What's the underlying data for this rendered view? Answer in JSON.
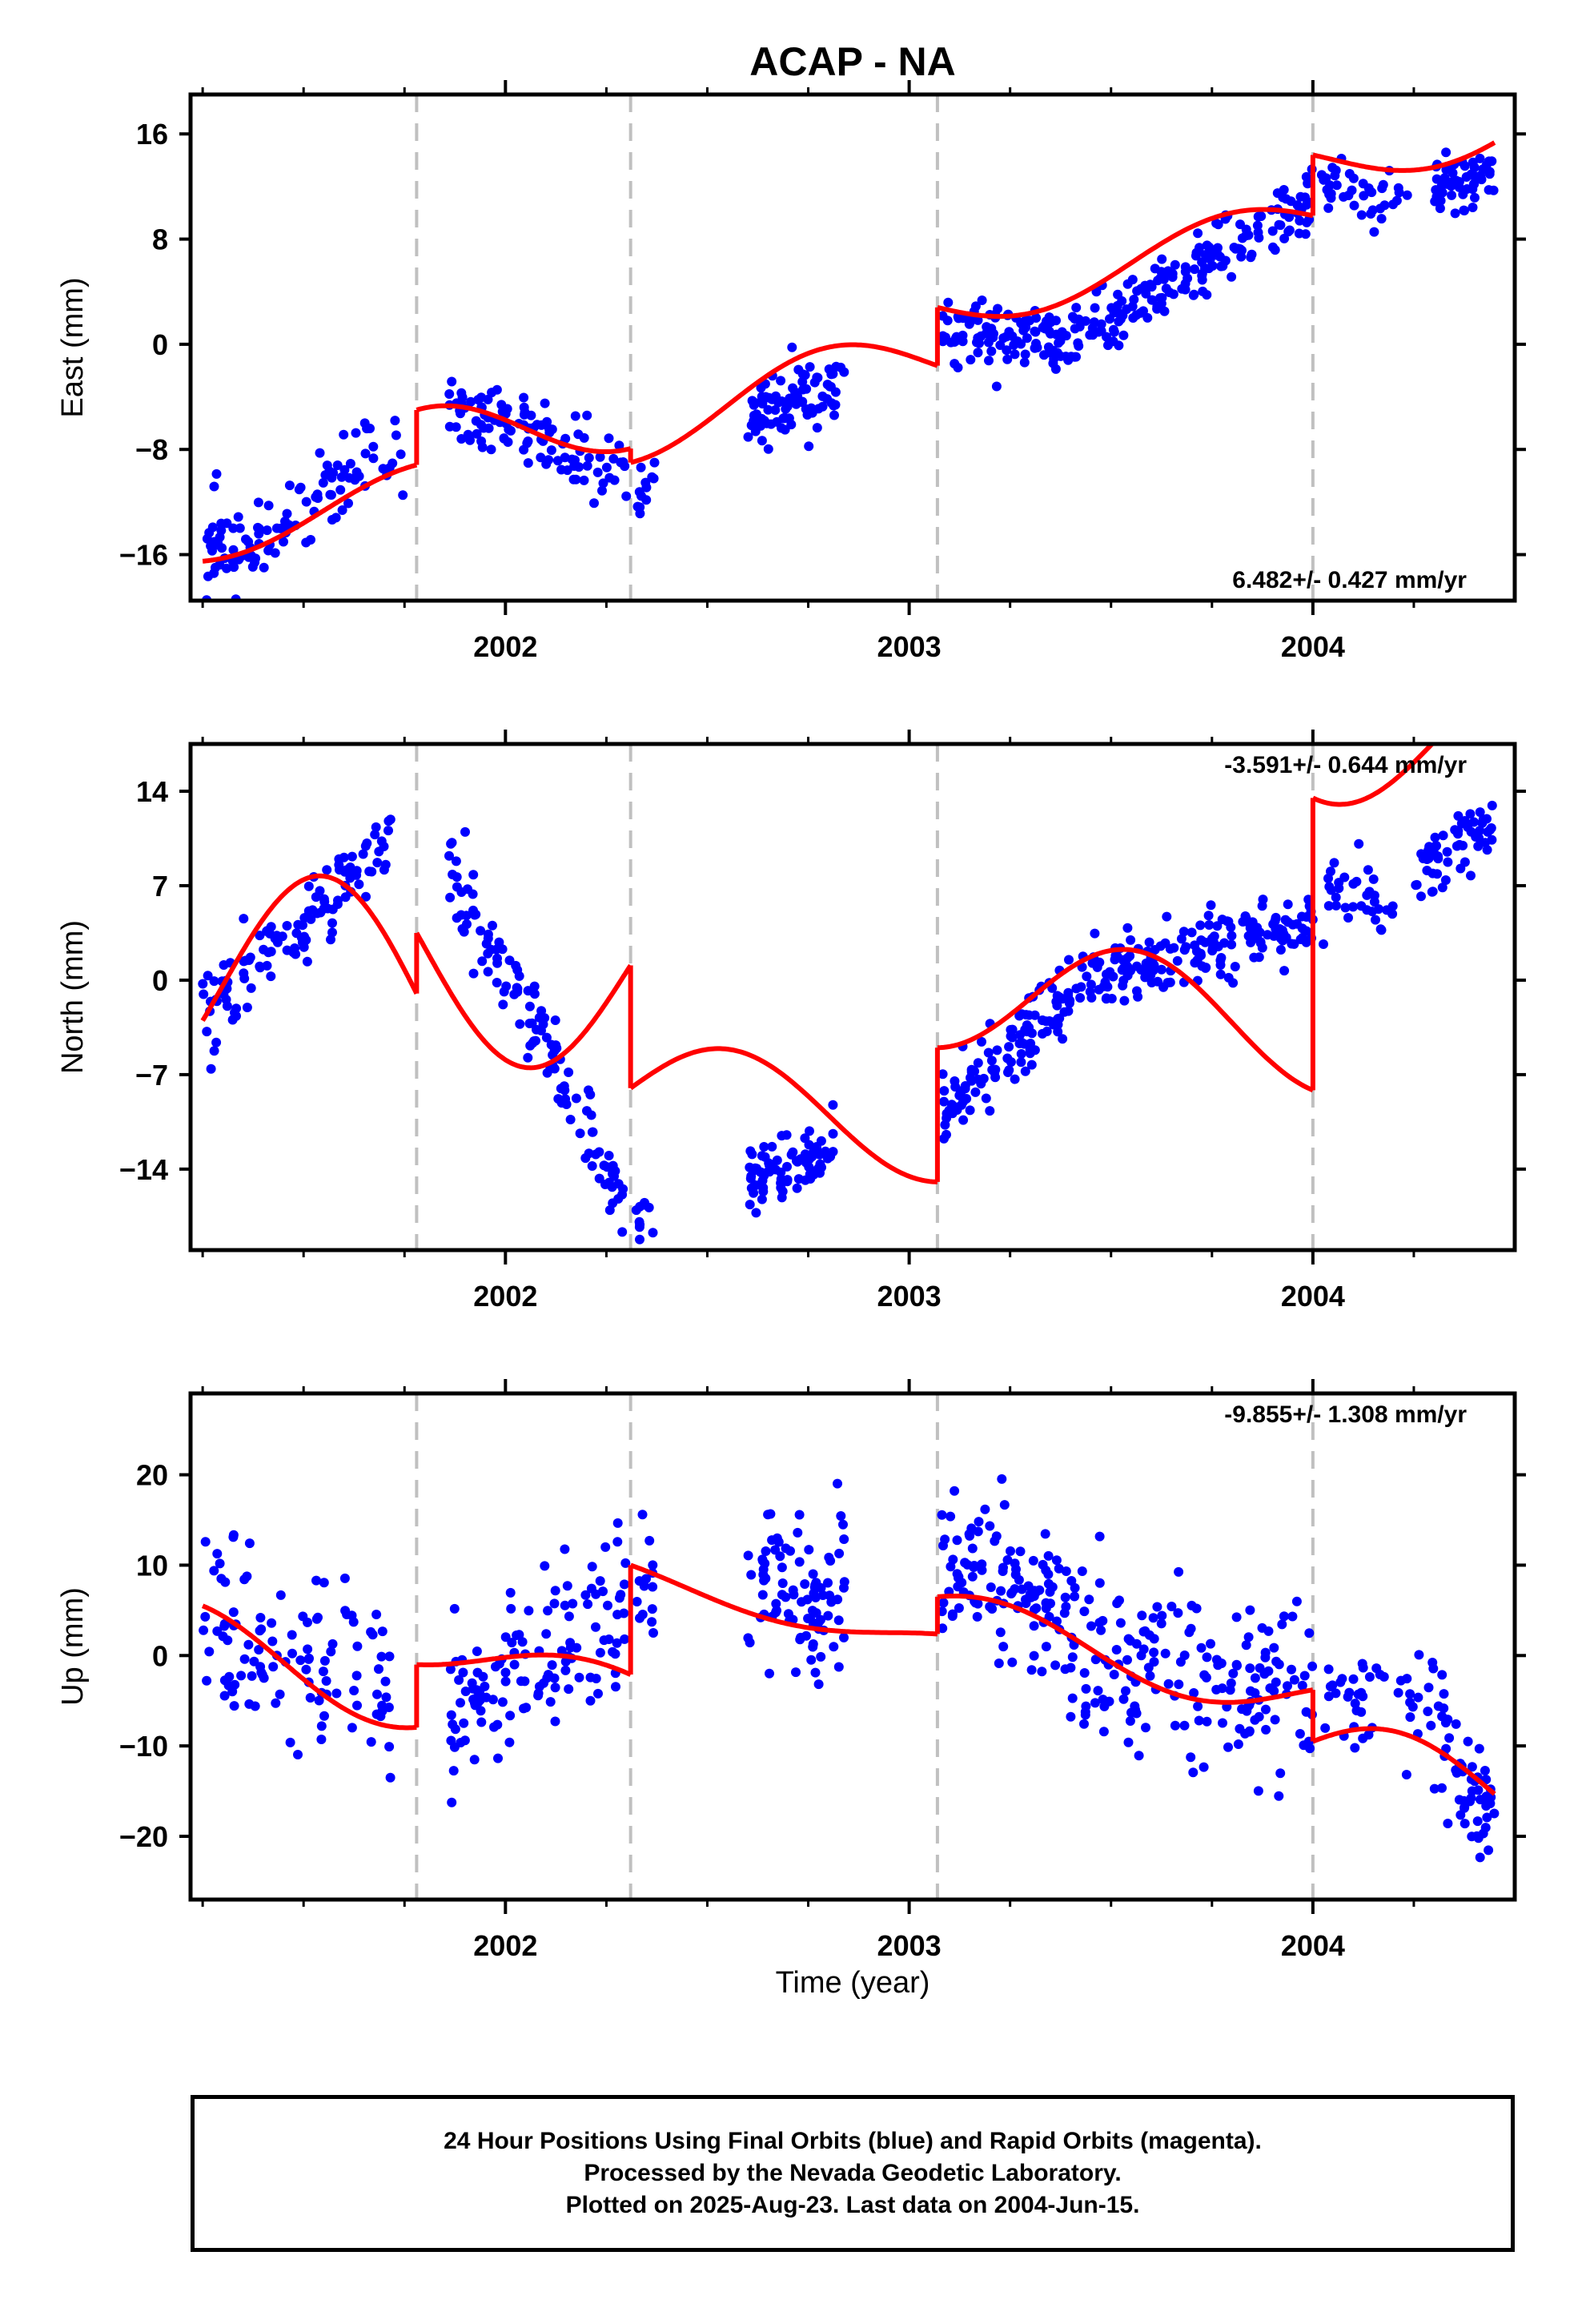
{
  "chart_data": [
    {
      "type": "scatter",
      "title": "ACAP - NA",
      "ylabel": "East (mm)",
      "xlabel": "",
      "rate_label": "6.482+/- 0.427 mm/yr",
      "xlim": [
        2001.22,
        2004.5
      ],
      "ylim": [
        -19.5,
        19
      ],
      "yticks": [
        -16,
        -8,
        0,
        8,
        16
      ],
      "ytick_labels": [
        "−16",
        "−8",
        "0",
        "8",
        "16"
      ],
      "xticks": [
        2002,
        2003,
        2004
      ],
      "xtick_labels": [
        "2002",
        "2003",
        "2004"
      ],
      "minor_xticks": [
        2001.25,
        2001.5,
        2001.75,
        2002.25,
        2002.5,
        2002.75,
        2003.25,
        2003.5,
        2003.75,
        2004.25
      ],
      "breaks": [
        2001.78,
        2002.31,
        2003.07,
        2004.0
      ],
      "series": [
        {
          "style": "points",
          "color": "#0000ff",
          "segments": [
            {
              "x": [
                2001.25,
                2001.75
              ],
              "y0": -16.5,
              "rate": 17.0,
              "noise": 1.7,
              "n": 110,
              "seed": 11
            },
            {
              "x": [
                2001.86,
                2002.3
              ],
              "y0": -4.5,
              "rate": -13.0,
              "noise": 1.6,
              "n": 110,
              "seed": 12
            },
            {
              "x": [
                2002.32,
                2002.37
              ],
              "y0": -11,
              "rate": 0,
              "noise": 1.0,
              "n": 12,
              "seed": 13
            },
            {
              "x": [
                2002.6,
                2002.84
              ],
              "y0": -5.5,
              "rate": 12.0,
              "noise": 1.4,
              "n": 85,
              "seed": 14
            },
            {
              "x": [
                2003.08,
                2003.35
              ],
              "y0": 1.3,
              "rate": -3.0,
              "noise": 1.3,
              "n": 90,
              "seed": 15
            },
            {
              "x": [
                2003.35,
                2004.0
              ],
              "y0": -0.5,
              "rate": 17.5,
              "noise": 1.2,
              "n": 190,
              "seed": 16
            },
            {
              "x": [
                2004.02,
                2004.25
              ],
              "y0": 12.5,
              "rate": -10.0,
              "noise": 1.2,
              "n": 40,
              "seed": 17
            },
            {
              "x": [
                2004.3,
                2004.45
              ],
              "y0": 11.5,
              "rate": 12.0,
              "noise": 1.3,
              "n": 60,
              "seed": 18
            }
          ]
        },
        {
          "style": "line",
          "color": "#ff0000",
          "model": [
            {
              "x": [
                2001.25,
                2001.78
              ],
              "y0": -16.5,
              "rate": 6.482,
              "amp": 2.0,
              "phase": 0.55,
              "offset": 0.0
            },
            {
              "x": [
                2001.78,
                2002.31
              ],
              "y0": -5.0,
              "rate": 6.482,
              "amp": 3.2,
              "phase": 0.55,
              "offset": 0.0
            },
            {
              "x": [
                2002.31,
                2003.07
              ],
              "y0": -9.0,
              "rate": 6.482,
              "amp": 2.8,
              "phase": 0.55,
              "offset": 0.0
            },
            {
              "x": [
                2003.07,
                2004.0
              ],
              "y0": 2.8,
              "rate": 6.482,
              "amp": 2.2,
              "phase": 0.55,
              "offset": 0.0
            },
            {
              "x": [
                2004.0,
                2004.45
              ],
              "y0": 14.4,
              "rate": 6.482,
              "amp": 2.2,
              "phase": 0.55,
              "offset": 0.0
            }
          ]
        }
      ]
    },
    {
      "type": "scatter",
      "title": "",
      "ylabel": "North (mm)",
      "xlabel": "",
      "rate_label": "-3.591+/- 0.644 mm/yr",
      "xlim": [
        2001.22,
        2004.5
      ],
      "ylim": [
        -20,
        17.5
      ],
      "yticks": [
        -14,
        -7,
        0,
        7,
        14
      ],
      "ytick_labels": [
        "−14",
        "−7",
        "0",
        "7",
        "14"
      ],
      "xticks": [
        2002,
        2003,
        2004
      ],
      "xtick_labels": [
        "2002",
        "2003",
        "2004"
      ],
      "minor_xticks": [
        2001.25,
        2001.5,
        2001.75,
        2002.25,
        2002.5,
        2002.75,
        2003.25,
        2003.5,
        2003.75,
        2004.25
      ],
      "breaks": [
        2001.78,
        2002.31,
        2003.07,
        2004.0
      ],
      "series": [
        {
          "style": "points",
          "color": "#0000ff",
          "segments": [
            {
              "x": [
                2001.25,
                2001.72
              ],
              "y0": -2.5,
              "rate": 27.0,
              "noise": 1.5,
              "n": 120,
              "seed": 21
            },
            {
              "x": [
                2001.86,
                2002.3
              ],
              "y0": 8.5,
              "rate": -58.0,
              "noise": 1.5,
              "n": 120,
              "seed": 22
            },
            {
              "x": [
                2002.32,
                2002.37
              ],
              "y0": -17,
              "rate": 0,
              "noise": 1.0,
              "n": 10,
              "seed": 23
            },
            {
              "x": [
                2002.6,
                2002.82
              ],
              "y0": -14.5,
              "rate": 6.0,
              "noise": 1.3,
              "n": 85,
              "seed": 24
            },
            {
              "x": [
                2003.08,
                2003.45
              ],
              "y0": -10.0,
              "rate": 28.0,
              "noise": 1.3,
              "n": 120,
              "seed": 25
            },
            {
              "x": [
                2003.45,
                2004.0
              ],
              "y0": 0.5,
              "rate": 7.0,
              "noise": 1.3,
              "n": 170,
              "seed": 26
            },
            {
              "x": [
                2004.02,
                2004.2
              ],
              "y0": 8.0,
              "rate": -18.0,
              "noise": 1.4,
              "n": 35,
              "seed": 27
            },
            {
              "x": [
                2004.25,
                2004.45
              ],
              "y0": 8.0,
              "rate": 18.0,
              "noise": 1.2,
              "n": 60,
              "seed": 28
            }
          ]
        },
        {
          "style": "line",
          "color": "#ff0000",
          "model": [
            {
              "x": [
                2001.25,
                2001.78
              ],
              "y0": -3.0,
              "rate": -3.591,
              "amp": 9.0,
              "phase": 0.3,
              "offset": 4.5
            },
            {
              "x": [
                2001.78,
                2002.31
              ],
              "y0": 3.5,
              "rate": -3.591,
              "amp": 8.0,
              "phase": 0.3,
              "offset": -4.0
            },
            {
              "x": [
                2002.31,
                2003.07
              ],
              "y0": -8.0,
              "rate": -3.591,
              "amp": 4.0,
              "phase": 0.3,
              "offset": -12.0
            },
            {
              "x": [
                2003.07,
                2004.0
              ],
              "y0": -5.0,
              "rate": -3.591,
              "amp": 4.5,
              "phase": 0.3,
              "offset": -3.0
            },
            {
              "x": [
                2004.0,
                2004.45
              ],
              "y0": 13.5,
              "rate": -3.591,
              "amp": 5.5,
              "phase": 0.3,
              "offset": 8.0
            }
          ]
        }
      ]
    },
    {
      "type": "scatter",
      "title": "",
      "ylabel": "Up (mm)",
      "xlabel": "Time (year)",
      "rate_label": "-9.855+/- 1.308 mm/yr",
      "xlim": [
        2001.22,
        2004.5
      ],
      "ylim": [
        -27,
        29
      ],
      "yticks": [
        -20,
        -10,
        0,
        10,
        20
      ],
      "ytick_labels": [
        "−20",
        "−10",
        "0",
        "10",
        "20"
      ],
      "xticks": [
        2002,
        2003,
        2004
      ],
      "xtick_labels": [
        "2002",
        "2003",
        "2004"
      ],
      "minor_xticks": [
        2001.25,
        2001.5,
        2001.75,
        2002.25,
        2002.5,
        2002.75,
        2003.25,
        2003.5,
        2003.75,
        2004.25
      ],
      "breaks": [
        2001.78,
        2002.31,
        2003.07,
        2004.0
      ],
      "series": [
        {
          "style": "points",
          "color": "#0000ff",
          "segments": [
            {
              "x": [
                2001.25,
                2001.72
              ],
              "y0": 4.0,
              "rate": -18.0,
              "noise": 5.0,
              "n": 110,
              "seed": 31
            },
            {
              "x": [
                2001.86,
                2002.3
              ],
              "y0": -7.0,
              "rate": 30.0,
              "noise": 5.0,
              "n": 130,
              "seed": 32
            },
            {
              "x": [
                2002.32,
                2002.37
              ],
              "y0": 9.0,
              "rate": 0,
              "noise": 3.5,
              "n": 14,
              "seed": 33
            },
            {
              "x": [
                2002.6,
                2002.84
              ],
              "y0": 7.0,
              "rate": 0,
              "noise": 5.0,
              "n": 90,
              "seed": 34
            },
            {
              "x": [
                2003.08,
                2003.4
              ],
              "y0": 10.0,
              "rate": -18.0,
              "noise": 4.5,
              "n": 110,
              "seed": 35
            },
            {
              "x": [
                2003.4,
                2004.0
              ],
              "y0": 0.0,
              "rate": -6.0,
              "noise": 5.0,
              "n": 170,
              "seed": 36
            },
            {
              "x": [
                2004.02,
                2004.3
              ],
              "y0": -6.0,
              "rate": 0,
              "noise": 3.5,
              "n": 45,
              "seed": 37
            },
            {
              "x": [
                2004.3,
                2004.45
              ],
              "y0": -8.0,
              "rate": -75.0,
              "noise": 4.0,
              "n": 55,
              "seed": 38
            }
          ]
        },
        {
          "style": "line",
          "color": "#ff0000",
          "model": [
            {
              "x": [
                2001.25,
                2001.78
              ],
              "y0": 5.5,
              "rate": -9.855,
              "amp": 4.5,
              "phase": 0.95,
              "offset": 2.0
            },
            {
              "x": [
                2001.78,
                2002.31
              ],
              "y0": -1.0,
              "rate": -9.855,
              "amp": 2.5,
              "phase": 0.95,
              "offset": 1.5
            },
            {
              "x": [
                2002.31,
                2003.07
              ],
              "y0": 10.0,
              "rate": -9.855,
              "amp": 1.5,
              "phase": 0.95,
              "offset": 14.0
            },
            {
              "x": [
                2003.07,
                2004.0
              ],
              "y0": 6.5,
              "rate": -9.855,
              "amp": 3.0,
              "phase": 0.95,
              "offset": 8.5
            },
            {
              "x": [
                2004.0,
                2004.45
              ],
              "y0": -9.5,
              "rate": -9.855,
              "amp": 4.5,
              "phase": 0.95,
              "offset": -3.0
            }
          ]
        }
      ]
    }
  ],
  "footer": {
    "line1": "24 Hour Positions Using Final Orbits (blue) and Rapid Orbits (magenta).",
    "line2": "Processed by the Nevada Geodetic Laboratory.",
    "line3": "Plotted on 2025-Aug-23. Last data on 2004-Jun-15."
  }
}
